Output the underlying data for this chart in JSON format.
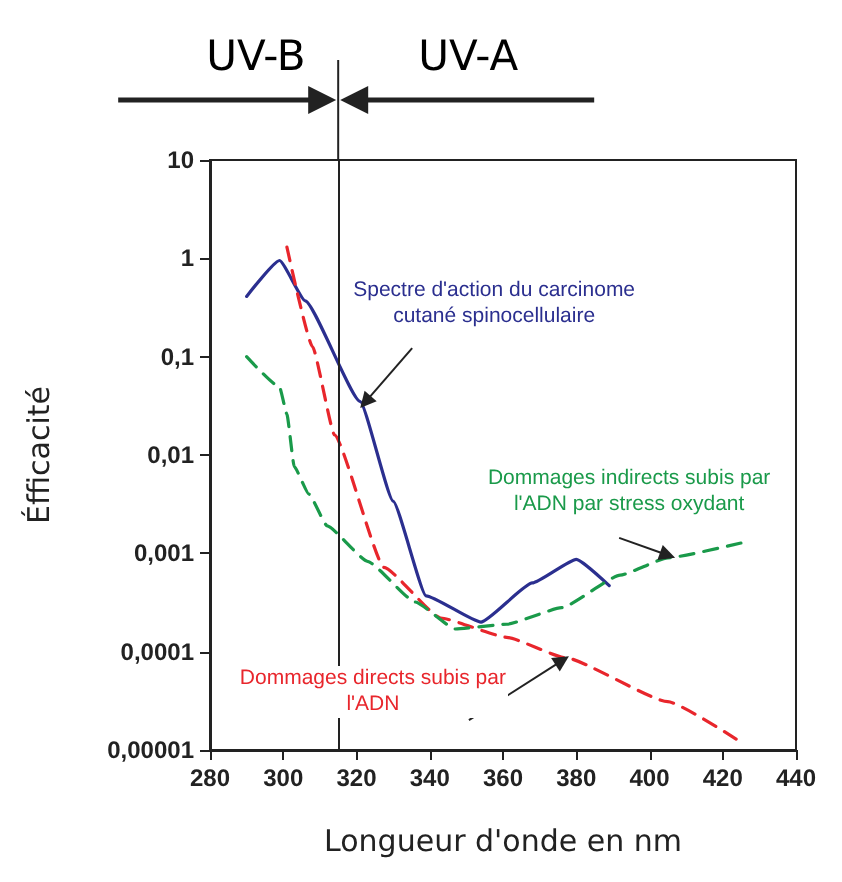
{
  "chart_data": {
    "type": "line",
    "xlabel": "Longueur d'onde en nm",
    "ylabel": "Éfficacité",
    "log": "y",
    "grid": false,
    "marker": "none",
    "xlim": [
      280,
      440
    ],
    "xticks": [
      280,
      300,
      320,
      340,
      360,
      380,
      400,
      420,
      440
    ],
    "ylim": [
      1e-05,
      10
    ],
    "yticks": [
      {
        "value": 1e-05,
        "label": "0,00001"
      },
      {
        "value": 0.0001,
        "label": "0,0001"
      },
      {
        "value": 0.001,
        "label": "0,001"
      },
      {
        "value": 0.01,
        "label": "0,01"
      },
      {
        "value": 0.1,
        "label": "0,1"
      },
      {
        "value": 1,
        "label": "1"
      },
      {
        "value": 10,
        "label": "10"
      }
    ],
    "series": [
      {
        "color": "#2b2f8f",
        "line_style": "solid",
        "x": [
          290,
          299,
          306,
          321,
          330,
          339,
          354,
          368,
          380,
          389
        ],
        "values": [
          0.41,
          0.95,
          0.37,
          0.035,
          0.0034,
          0.00037,
          0.0002,
          0.0005,
          0.00087,
          0.00047
        ]
      },
      {
        "color": "#e8262c",
        "line_style": "dashed",
        "x": [
          301,
          308,
          314,
          327.5,
          343,
          361,
          377,
          405,
          425
        ],
        "values": [
          1.3,
          0.126,
          0.016,
          0.00072,
          0.00022,
          0.00014,
          8.7e-05,
          3.1e-05,
          1.2e-05
        ]
      },
      {
        "color": "#1a9a4a",
        "line_style": "dashed",
        "x": [
          290,
          299,
          301,
          303,
          307,
          312,
          323,
          336,
          347,
          361,
          376,
          392,
          405,
          426
        ],
        "values": [
          0.1,
          0.049,
          0.026,
          0.0076,
          0.004,
          0.0019,
          0.00083,
          0.00032,
          0.00017,
          0.00019,
          0.00028,
          0.0006,
          0.0009,
          0.0013
        ]
      }
    ],
    "ref_lines": [
      {
        "axis": "x",
        "value": 315
      }
    ],
    "annotations": [
      {
        "text": "Spectre d'action du carcinome cutané spinocellulaire",
        "x": 321,
        "y": 0.03
      },
      {
        "text": "Dommages directs subis par l'ADN",
        "x": 378,
        "y": 9e-05
      },
      {
        "text": "Dommages indirects subis par l'ADN par stress oxydant",
        "x": 407,
        "y": 0.0009
      },
      "UV-B",
      "UV-A"
    ]
  }
}
